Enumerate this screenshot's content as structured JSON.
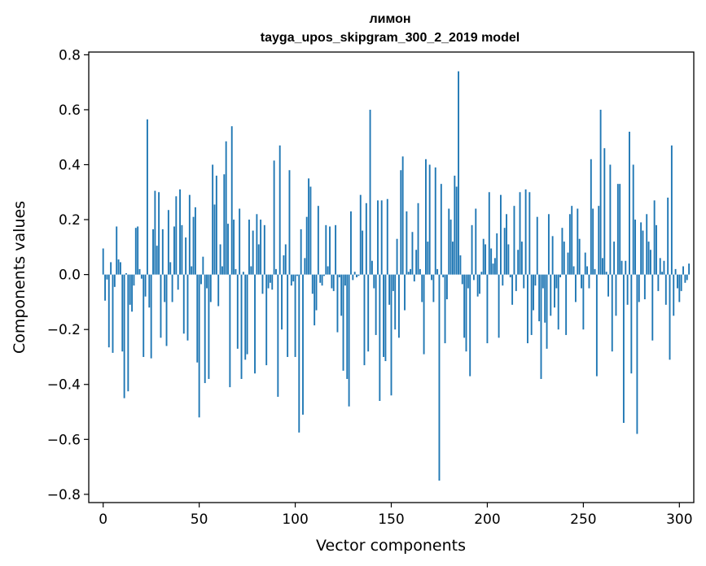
{
  "chart_data": {
    "type": "bar",
    "title": "лимон",
    "subtitle": "tayga_upos_skipgram_300_2_2019 model",
    "xlabel": "Vector components",
    "ylabel": "Components values",
    "xlim": [
      -7.5,
      307.5
    ],
    "ylim": [
      -0.83,
      0.81
    ],
    "xticks": [
      0,
      50,
      100,
      150,
      200,
      250,
      300
    ],
    "yticks": [
      -0.8,
      -0.6,
      -0.4,
      -0.2,
      0.0,
      0.2,
      0.4,
      0.6,
      0.8
    ],
    "ytick_labels": [
      "−0.8",
      "−0.6",
      "−0.4",
      "−0.2",
      "0.0",
      "0.2",
      "0.4",
      "0.6",
      "0.8"
    ],
    "grid": false,
    "bar_color": "#1f77b4",
    "x_start": 0,
    "values": [
      0.095,
      -0.095,
      -0.018,
      -0.265,
      0.045,
      -0.285,
      -0.045,
      0.175,
      0.055,
      0.045,
      -0.28,
      -0.45,
      0.005,
      -0.425,
      -0.11,
      -0.135,
      -0.04,
      0.17,
      0.175,
      0.02,
      -0.015,
      -0.3,
      -0.08,
      0.565,
      -0.12,
      -0.305,
      0.165,
      0.305,
      0.105,
      0.3,
      -0.23,
      0.165,
      -0.1,
      -0.26,
      0.235,
      0.045,
      -0.1,
      0.175,
      0.285,
      -0.055,
      0.31,
      0.18,
      -0.215,
      0.135,
      -0.24,
      0.29,
      0.03,
      0.21,
      0.245,
      -0.32,
      -0.52,
      -0.035,
      0.065,
      -0.395,
      -0.05,
      -0.38,
      -0.1,
      0.4,
      0.255,
      0.36,
      -0.115,
      0.11,
      0.03,
      0.365,
      0.485,
      0.185,
      -0.41,
      0.54,
      0.2,
      0.02,
      -0.27,
      0.24,
      -0.38,
      0.01,
      -0.31,
      -0.29,
      0.2,
      0.03,
      0.16,
      -0.36,
      0.22,
      0.11,
      0.2,
      -0.07,
      0.18,
      -0.33,
      -0.05,
      -0.03,
      -0.055,
      0.415,
      0.02,
      -0.445,
      0.47,
      -0.2,
      0.07,
      0.11,
      -0.3,
      0.38,
      -0.04,
      -0.025,
      -0.3,
      -0.005,
      -0.575,
      0.165,
      -0.51,
      0.06,
      0.21,
      0.35,
      0.32,
      -0.07,
      -0.185,
      -0.13,
      0.25,
      -0.03,
      -0.04,
      -0.005,
      0.18,
      0.03,
      0.175,
      -0.05,
      -0.06,
      0.18,
      -0.21,
      -0.01,
      -0.15,
      -0.35,
      -0.04,
      -0.38,
      -0.48,
      0.23,
      -0.02,
      0.01,
      -0.01,
      -0.005,
      0.29,
      0.16,
      -0.33,
      0.26,
      -0.28,
      0.6,
      0.05,
      -0.05,
      -0.22,
      0.27,
      -0.46,
      0.27,
      -0.3,
      -0.315,
      0.275,
      -0.11,
      -0.44,
      -0.06,
      -0.2,
      0.13,
      -0.23,
      0.38,
      0.43,
      -0.13,
      0.23,
      0.01,
      0.02,
      0.155,
      -0.025,
      0.09,
      0.26,
      0.02,
      -0.1,
      -0.29,
      0.42,
      0.12,
      0.4,
      -0.02,
      -0.1,
      0.39,
      0.02,
      -0.75,
      0.33,
      -0.01,
      -0.25,
      -0.09,
      0.24,
      0.2,
      0.12,
      0.36,
      0.32,
      0.74,
      0.07,
      -0.035,
      -0.23,
      -0.28,
      -0.05,
      -0.37,
      0.18,
      -0.02,
      0.24,
      -0.08,
      -0.07,
      0.01,
      0.13,
      0.11,
      -0.25,
      0.3,
      0.095,
      0.04,
      0.06,
      0.15,
      -0.23,
      0.29,
      -0.04,
      0.17,
      0.22,
      0.11,
      -0.01,
      -0.11,
      0.25,
      -0.06,
      0.09,
      0.3,
      0.12,
      -0.05,
      0.31,
      -0.25,
      0.3,
      -0.22,
      -0.13,
      -0.04,
      0.21,
      -0.17,
      -0.38,
      -0.05,
      -0.175,
      -0.27,
      0.22,
      -0.15,
      0.14,
      -0.12,
      -0.05,
      -0.2,
      -0.01,
      0.17,
      0.12,
      -0.22,
      0.08,
      0.22,
      0.25,
      0.03,
      -0.1,
      0.24,
      0.13,
      -0.05,
      -0.2,
      0.08,
      0.03,
      -0.05,
      0.42,
      0.24,
      0.02,
      -0.37,
      0.25,
      0.6,
      0.06,
      0.46,
      0.01,
      -0.08,
      0.4,
      -0.28,
      0.12,
      -0.15,
      0.33,
      0.33,
      0.05,
      -0.54,
      0.05,
      -0.11,
      0.52,
      -0.36,
      0.4,
      0.2,
      -0.58,
      -0.1,
      0.19,
      0.16,
      -0.09,
      0.22,
      0.12,
      0.09,
      -0.24,
      0.27,
      0.18,
      -0.06,
      0.06,
      0.01,
      0.05,
      -0.11,
      0.28,
      -0.31,
      0.47,
      -0.15,
      0.02,
      -0.05,
      -0.1,
      -0.06,
      0.03,
      -0.03,
      -0.02,
      0.04
    ]
  }
}
